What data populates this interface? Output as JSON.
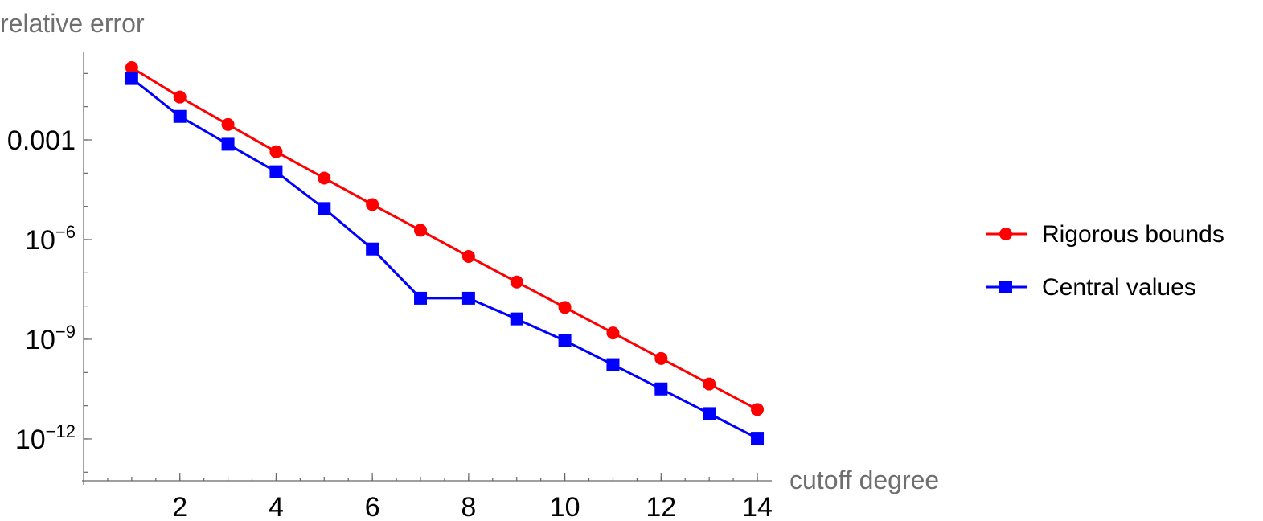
{
  "chart_data": {
    "type": "line",
    "yscale": "log",
    "xlabel": "cutoff degree",
    "ylabel": "relative error",
    "xlim": [
      0,
      14.3
    ],
    "ylim_log10": [
      -13.1,
      2.7
    ],
    "x_ticks": [
      2,
      4,
      6,
      8,
      10,
      12,
      14
    ],
    "y_ticks": [
      {
        "value_log10": -3,
        "label": "0.001"
      },
      {
        "value_log10": -6,
        "base": "10",
        "exponent": "−6"
      },
      {
        "value_log10": -9,
        "base": "10",
        "exponent": "−9"
      },
      {
        "value_log10": -12,
        "base": "10",
        "exponent": "−12"
      }
    ],
    "x": [
      1,
      2,
      3,
      4,
      5,
      6,
      7,
      8,
      9,
      10,
      11,
      12,
      13,
      14
    ],
    "series": [
      {
        "name": "Rigorous bounds",
        "color": "#ff0000",
        "marker": "circle",
        "values": [
          0.15,
          0.0195,
          0.0029,
          0.00044,
          7.1e-05,
          1.13e-05,
          1.91e-06,
          3.1e-07,
          5.3e-08,
          9.1e-09,
          1.55e-09,
          2.65e-10,
          4.5e-11,
          7.7e-12
        ]
      },
      {
        "name": "Central values",
        "color": "#0000ff",
        "marker": "square",
        "values": [
          0.0705,
          0.0051,
          0.00074,
          0.00011,
          8.6e-06,
          5.2e-07,
          1.72e-08,
          1.72e-08,
          4.1e-09,
          9.1e-10,
          1.72e-10,
          3.2e-11,
          5.8e-12,
          1.05e-12
        ]
      }
    ],
    "legend": "right"
  }
}
